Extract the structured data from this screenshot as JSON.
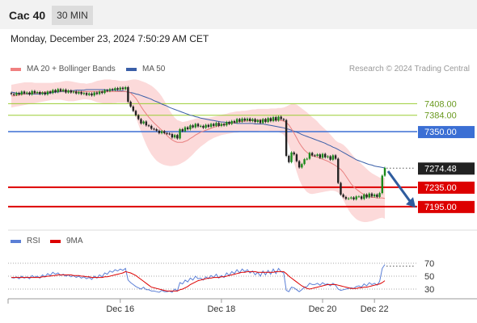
{
  "header": {
    "symbol": "Cac 40",
    "timeframe": "30 MIN"
  },
  "timestamp": "Monday, December 23, 2024 7:50:29 AM CET",
  "legend": {
    "ma20": {
      "label": "MA 20 + Bollinger Bands",
      "color": "#f08080"
    },
    "ma50": {
      "label": "MA 50",
      "color": "#3a5fa8"
    },
    "rsi": {
      "label": "RSI",
      "color": "#5b7fd6"
    },
    "rsi9": {
      "label": "9MA",
      "color": "#dd0000"
    }
  },
  "credit": "Research © 2024 Trading Central",
  "colors": {
    "up": "#1a8a1a",
    "down": "#222222",
    "resistance_green": "#9acd32",
    "pivot_blue": "#3b6fd4",
    "support_red": "#dd0000",
    "current": "#222222",
    "arrow": "#2e5c9e"
  },
  "chart_data": [
    {
      "type": "candlestick",
      "x_ticks": [
        "Dec 16",
        "Dec 18",
        "Dec 20",
        "Dec 22"
      ],
      "ylim": [
        7148,
        7462
      ],
      "levels": [
        {
          "label": "7408.00",
          "value": 7408,
          "kind": "resistance"
        },
        {
          "label": "7384.00",
          "value": 7384,
          "kind": "resistance"
        },
        {
          "label": "7350.00",
          "value": 7350,
          "kind": "pivot"
        },
        {
          "label": "7274.48",
          "value": 7274.48,
          "kind": "current"
        },
        {
          "label": "7235.00",
          "value": 7235,
          "kind": "support"
        },
        {
          "label": "7195.00",
          "value": 7195,
          "kind": "support"
        }
      ],
      "close": [
        7428,
        7426,
        7430,
        7427,
        7433,
        7429,
        7431,
        7427,
        7434,
        7430,
        7432,
        7428,
        7431,
        7427,
        7433,
        7430,
        7436,
        7432,
        7438,
        7434,
        7437,
        7431,
        7435,
        7431,
        7433,
        7429,
        7432,
        7428,
        7430,
        7426,
        7429,
        7425,
        7431,
        7428,
        7433,
        7430,
        7436,
        7434,
        7438,
        7436,
        7440,
        7437,
        7441,
        7438,
        7442,
        7412,
        7402,
        7393,
        7384,
        7376,
        7367,
        7371,
        7363,
        7362,
        7356,
        7355,
        7352,
        7347,
        7351,
        7347,
        7346,
        7345,
        7338,
        7343,
        7336,
        7355,
        7351,
        7359,
        7355,
        7363,
        7359,
        7366,
        7361,
        7362,
        7358,
        7364,
        7360,
        7366,
        7362,
        7368,
        7362,
        7366,
        7363,
        7370,
        7366,
        7372,
        7369,
        7376,
        7371,
        7377,
        7373,
        7377,
        7372,
        7376,
        7370,
        7374,
        7368,
        7376,
        7370,
        7378,
        7372,
        7380,
        7373,
        7381,
        7376,
        7374,
        7300,
        7287,
        7307,
        7303,
        7289,
        7276,
        7283,
        7293,
        7294,
        7306,
        7301,
        7300,
        7303,
        7296,
        7304,
        7297,
        7299,
        7292,
        7301,
        7294,
        7244,
        7220,
        7215,
        7211,
        7212,
        7214,
        7210,
        7216,
        7216,
        7211,
        7220,
        7214,
        7222,
        7216,
        7220,
        7215,
        7223,
        7259,
        7275
      ],
      "bb_upper": [
        7447,
        7448,
        7449,
        7450,
        7451,
        7452,
        7452,
        7452,
        7452,
        7451,
        7451,
        7451,
        7451,
        7451,
        7451,
        7451,
        7451,
        7452,
        7452,
        7453,
        7454,
        7455,
        7455,
        7454,
        7453,
        7452,
        7451,
        7450,
        7450,
        7449,
        7450,
        7451,
        7453,
        7455,
        7456,
        7457,
        7458,
        7458,
        7458,
        7457,
        7457,
        7456,
        7455,
        7455,
        7455,
        7456,
        7457,
        7458,
        7458,
        7457,
        7455,
        7453,
        7451,
        7448,
        7445,
        7441,
        7436,
        7430,
        7423,
        7414,
        7404,
        7394,
        7386,
        7379,
        7374,
        7372,
        7370,
        7371,
        7372,
        7374,
        7375,
        7377,
        7378,
        7379,
        7379,
        7379,
        7379,
        7380,
        7381,
        7382,
        7383,
        7385,
        7386,
        7387,
        7389,
        7390,
        7391,
        7392,
        7392,
        7393,
        7393,
        7394,
        7395,
        7396,
        7396,
        7397,
        7397,
        7397,
        7397,
        7397,
        7398,
        7398,
        7398,
        7399,
        7399,
        7400,
        7402,
        7405,
        7407,
        7407,
        7406,
        7402,
        7398,
        7394,
        7390,
        7385,
        7380,
        7376,
        7371,
        7365,
        7360,
        7355,
        7350,
        7344,
        7338,
        7332,
        7328,
        7326,
        7323,
        7318,
        7312,
        7305,
        7299,
        7293,
        7288,
        7283,
        7278,
        7273,
        7268,
        7264,
        7261,
        7258,
        7255,
        7254,
        7255
      ],
      "bb_lower": [
        7400,
        7401,
        7402,
        7403,
        7404,
        7405,
        7406,
        7407,
        7408,
        7409,
        7410,
        7411,
        7412,
        7413,
        7414,
        7415,
        7416,
        7416,
        7416,
        7416,
        7415,
        7414,
        7413,
        7413,
        7413,
        7414,
        7415,
        7416,
        7417,
        7417,
        7416,
        7415,
        7413,
        7411,
        7410,
        7409,
        7408,
        7408,
        7408,
        7409,
        7409,
        7410,
        7410,
        7410,
        7410,
        7408,
        7403,
        7393,
        7380,
        7365,
        7350,
        7336,
        7323,
        7312,
        7303,
        7296,
        7290,
        7286,
        7283,
        7281,
        7280,
        7279,
        7279,
        7280,
        7281,
        7283,
        7286,
        7289,
        7293,
        7298,
        7303,
        7309,
        7314,
        7319,
        7323,
        7327,
        7331,
        7334,
        7337,
        7339,
        7341,
        7343,
        7344,
        7345,
        7346,
        7347,
        7348,
        7348,
        7349,
        7350,
        7350,
        7350,
        7351,
        7351,
        7351,
        7351,
        7352,
        7352,
        7352,
        7352,
        7351,
        7351,
        7350,
        7349,
        7347,
        7344,
        7336,
        7322,
        7305,
        7286,
        7267,
        7251,
        7239,
        7231,
        7225,
        7222,
        7221,
        7222,
        7223,
        7224,
        7225,
        7226,
        7227,
        7228,
        7228,
        7227,
        7224,
        7218,
        7209,
        7198,
        7188,
        7180,
        7174,
        7169,
        7166,
        7164,
        7163,
        7163,
        7164,
        7165,
        7167,
        7169,
        7171,
        7172,
        7170
      ],
      "ma20": [
        7424,
        7424,
        7425,
        7426,
        7427,
        7428,
        7429,
        7429,
        7430,
        7430,
        7430,
        7431,
        7431,
        7432,
        7432,
        7433,
        7433,
        7434,
        7434,
        7434,
        7434,
        7434,
        7434,
        7434,
        7433,
        7433,
        7433,
        7433,
        7433,
        7433,
        7433,
        7433,
        7433,
        7433,
        7433,
        7433,
        7433,
        7433,
        7433,
        7433,
        7433,
        7433,
        7433,
        7433,
        7433,
        7432,
        7430,
        7425,
        7419,
        7411,
        7402,
        7394,
        7387,
        7380,
        7374,
        7368,
        7363,
        7358,
        7353,
        7348,
        7342,
        7337,
        7333,
        7330,
        7328,
        7328,
        7328,
        7330,
        7332,
        7336,
        7339,
        7343,
        7346,
        7349,
        7351,
        7353,
        7355,
        7357,
        7359,
        7361,
        7362,
        7364,
        7365,
        7366,
        7367,
        7368,
        7369,
        7370,
        7371,
        7371,
        7372,
        7372,
        7373,
        7373,
        7374,
        7374,
        7374,
        7374,
        7375,
        7375,
        7375,
        7375,
        7374,
        7374,
        7373,
        7372,
        7369,
        7364,
        7356,
        7347,
        7337,
        7327,
        7319,
        7312,
        7307,
        7303,
        7300,
        7299,
        7297,
        7295,
        7293,
        7291,
        7289,
        7286,
        7283,
        7280,
        7276,
        7272,
        7266,
        7258,
        7250,
        7242,
        7236,
        7231,
        7227,
        7223,
        7220,
        7218,
        7216,
        7214,
        7214,
        7213,
        7213,
        7213,
        7212
      ],
      "ma50": [
        7432,
        7431,
        7430,
        7429,
        7429,
        7428,
        7428,
        7428,
        7428,
        7428,
        7428,
        7428,
        7429,
        7429,
        7430,
        7430,
        7431,
        7432,
        7432,
        7433,
        7433,
        7434,
        7434,
        7435,
        7435,
        7436,
        7436,
        7436,
        7436,
        7437,
        7437,
        7437,
        7437,
        7437,
        7437,
        7437,
        7437,
        7436,
        7436,
        7436,
        7436,
        7435,
        7435,
        7434,
        7433,
        7432,
        7431,
        7430,
        7428,
        7427,
        7425,
        7423,
        7421,
        7419,
        7417,
        7414,
        7412,
        7410,
        7407,
        7405,
        7403,
        7400,
        7398,
        7396,
        7394,
        7392,
        7390,
        7388,
        7386,
        7384,
        7383,
        7381,
        7380,
        7378,
        7377,
        7376,
        7375,
        7374,
        7373,
        7372,
        7371,
        7370,
        7370,
        7369,
        7369,
        7368,
        7368,
        7367,
        7367,
        7367,
        7367,
        7367,
        7367,
        7367,
        7366,
        7366,
        7366,
        7366,
        7365,
        7364,
        7363,
        7362,
        7361,
        7360,
        7359,
        7358,
        7356,
        7355,
        7353,
        7351,
        7349,
        7347,
        7344,
        7342,
        7340,
        7338,
        7336,
        7334,
        7332,
        7330,
        7328,
        7326,
        7323,
        7321,
        7318,
        7316,
        7313,
        7310,
        7307,
        7304,
        7301,
        7298,
        7295,
        7292,
        7290,
        7288,
        7286,
        7284,
        7282,
        7281,
        7279,
        7278,
        7277,
        7276,
        7275
      ],
      "series": [
        {
          "name": "MA 20 + Bollinger Bands"
        },
        {
          "name": "MA 50"
        }
      ]
    },
    {
      "type": "line",
      "ylim": [
        20,
        80
      ],
      "y_ticks": [
        70,
        50,
        30
      ],
      "series": [
        {
          "name": "RSI",
          "values": [
            48,
            47,
            49,
            46,
            50,
            47,
            49,
            46,
            51,
            48,
            50,
            47,
            52,
            49,
            54,
            51,
            56,
            53,
            55,
            51,
            53,
            50,
            52,
            49,
            51,
            48,
            50,
            47,
            49,
            46,
            48,
            45,
            50,
            47,
            52,
            49,
            55,
            53,
            58,
            56,
            60,
            58,
            61,
            59,
            62,
            44,
            40,
            37,
            34,
            32,
            30,
            33,
            29,
            29,
            27,
            27,
            26,
            25,
            28,
            26,
            26,
            27,
            25,
            30,
            27,
            40,
            38,
            44,
            41,
            47,
            44,
            50,
            46,
            47,
            44,
            49,
            46,
            51,
            48,
            53,
            47,
            51,
            48,
            55,
            51,
            57,
            54,
            60,
            55,
            61,
            57,
            60,
            55,
            58,
            52,
            56,
            50,
            58,
            52,
            59,
            53,
            61,
            54,
            62,
            57,
            55,
            28,
            26,
            33,
            32,
            29,
            26,
            29,
            33,
            34,
            39,
            37,
            37,
            39,
            36,
            40,
            37,
            38,
            35,
            39,
            36,
            30,
            28,
            29,
            30,
            31,
            32,
            31,
            34,
            35,
            33,
            38,
            35,
            40,
            37,
            39,
            36,
            42,
            62,
            68
          ]
        },
        {
          "name": "9MA",
          "values": [
            48,
            48,
            48,
            48,
            48,
            48,
            48,
            48,
            48,
            48,
            48,
            48,
            49,
            49,
            50,
            50,
            51,
            51,
            52,
            52,
            52,
            52,
            52,
            52,
            51,
            51,
            51,
            50,
            50,
            49,
            49,
            48,
            48,
            48,
            48,
            48,
            49,
            49,
            50,
            51,
            52,
            53,
            54,
            55,
            57,
            56,
            55,
            53,
            51,
            48,
            45,
            42,
            39,
            36,
            33,
            32,
            31,
            30,
            29,
            28,
            27,
            27,
            27,
            27,
            27,
            29,
            30,
            32,
            34,
            37,
            39,
            41,
            43,
            44,
            45,
            46,
            47,
            47,
            48,
            48,
            48,
            49,
            49,
            50,
            51,
            52,
            53,
            54,
            55,
            56,
            56,
            57,
            57,
            57,
            57,
            56,
            56,
            56,
            56,
            56,
            56,
            56,
            57,
            57,
            57,
            57,
            54,
            50,
            47,
            44,
            41,
            38,
            35,
            33,
            31,
            30,
            31,
            32,
            33,
            34,
            35,
            36,
            37,
            37,
            37,
            37,
            36,
            35,
            34,
            33,
            32,
            31,
            31,
            31,
            32,
            32,
            33,
            33,
            34,
            35,
            36,
            37,
            38,
            40,
            43
          ]
        }
      ]
    }
  ]
}
